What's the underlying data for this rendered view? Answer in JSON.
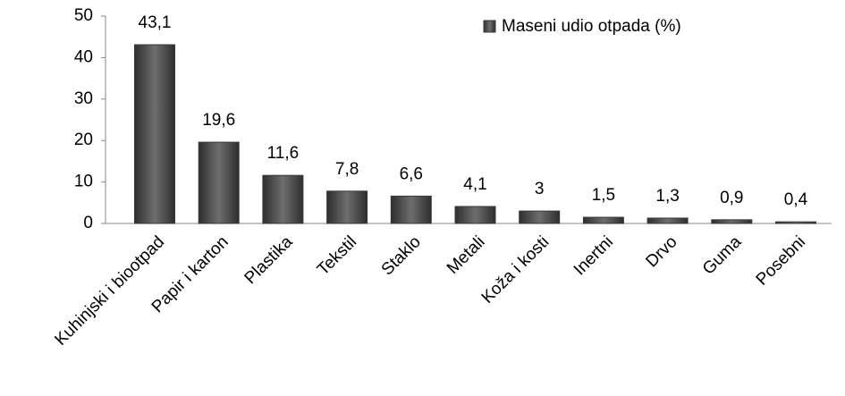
{
  "chart_data": {
    "type": "bar",
    "categories": [
      "Kuhinjski i biootpad",
      "Papir i karton",
      "Plastika",
      "Tekstil",
      "Staklo",
      "Metali",
      "Koža i kosti",
      "Inertni",
      "Drvo",
      "Guma",
      "Posebni"
    ],
    "series": [
      {
        "name": "Maseni udio otpada (%)",
        "color": "#555555",
        "values": [
          43.1,
          19.6,
          11.6,
          7.8,
          6.6,
          4.1,
          3,
          1.5,
          1.3,
          0.9,
          0.4
        ],
        "value_labels": [
          "43,1",
          "19,6",
          "11,6",
          "7,8",
          "6,6",
          "4,1",
          "3",
          "1,5",
          "1,3",
          "0,9",
          "0,4"
        ]
      }
    ],
    "ylim": [
      0,
      50
    ],
    "yticks": [
      0,
      10,
      20,
      30,
      40,
      50
    ],
    "legend": "top-right"
  }
}
